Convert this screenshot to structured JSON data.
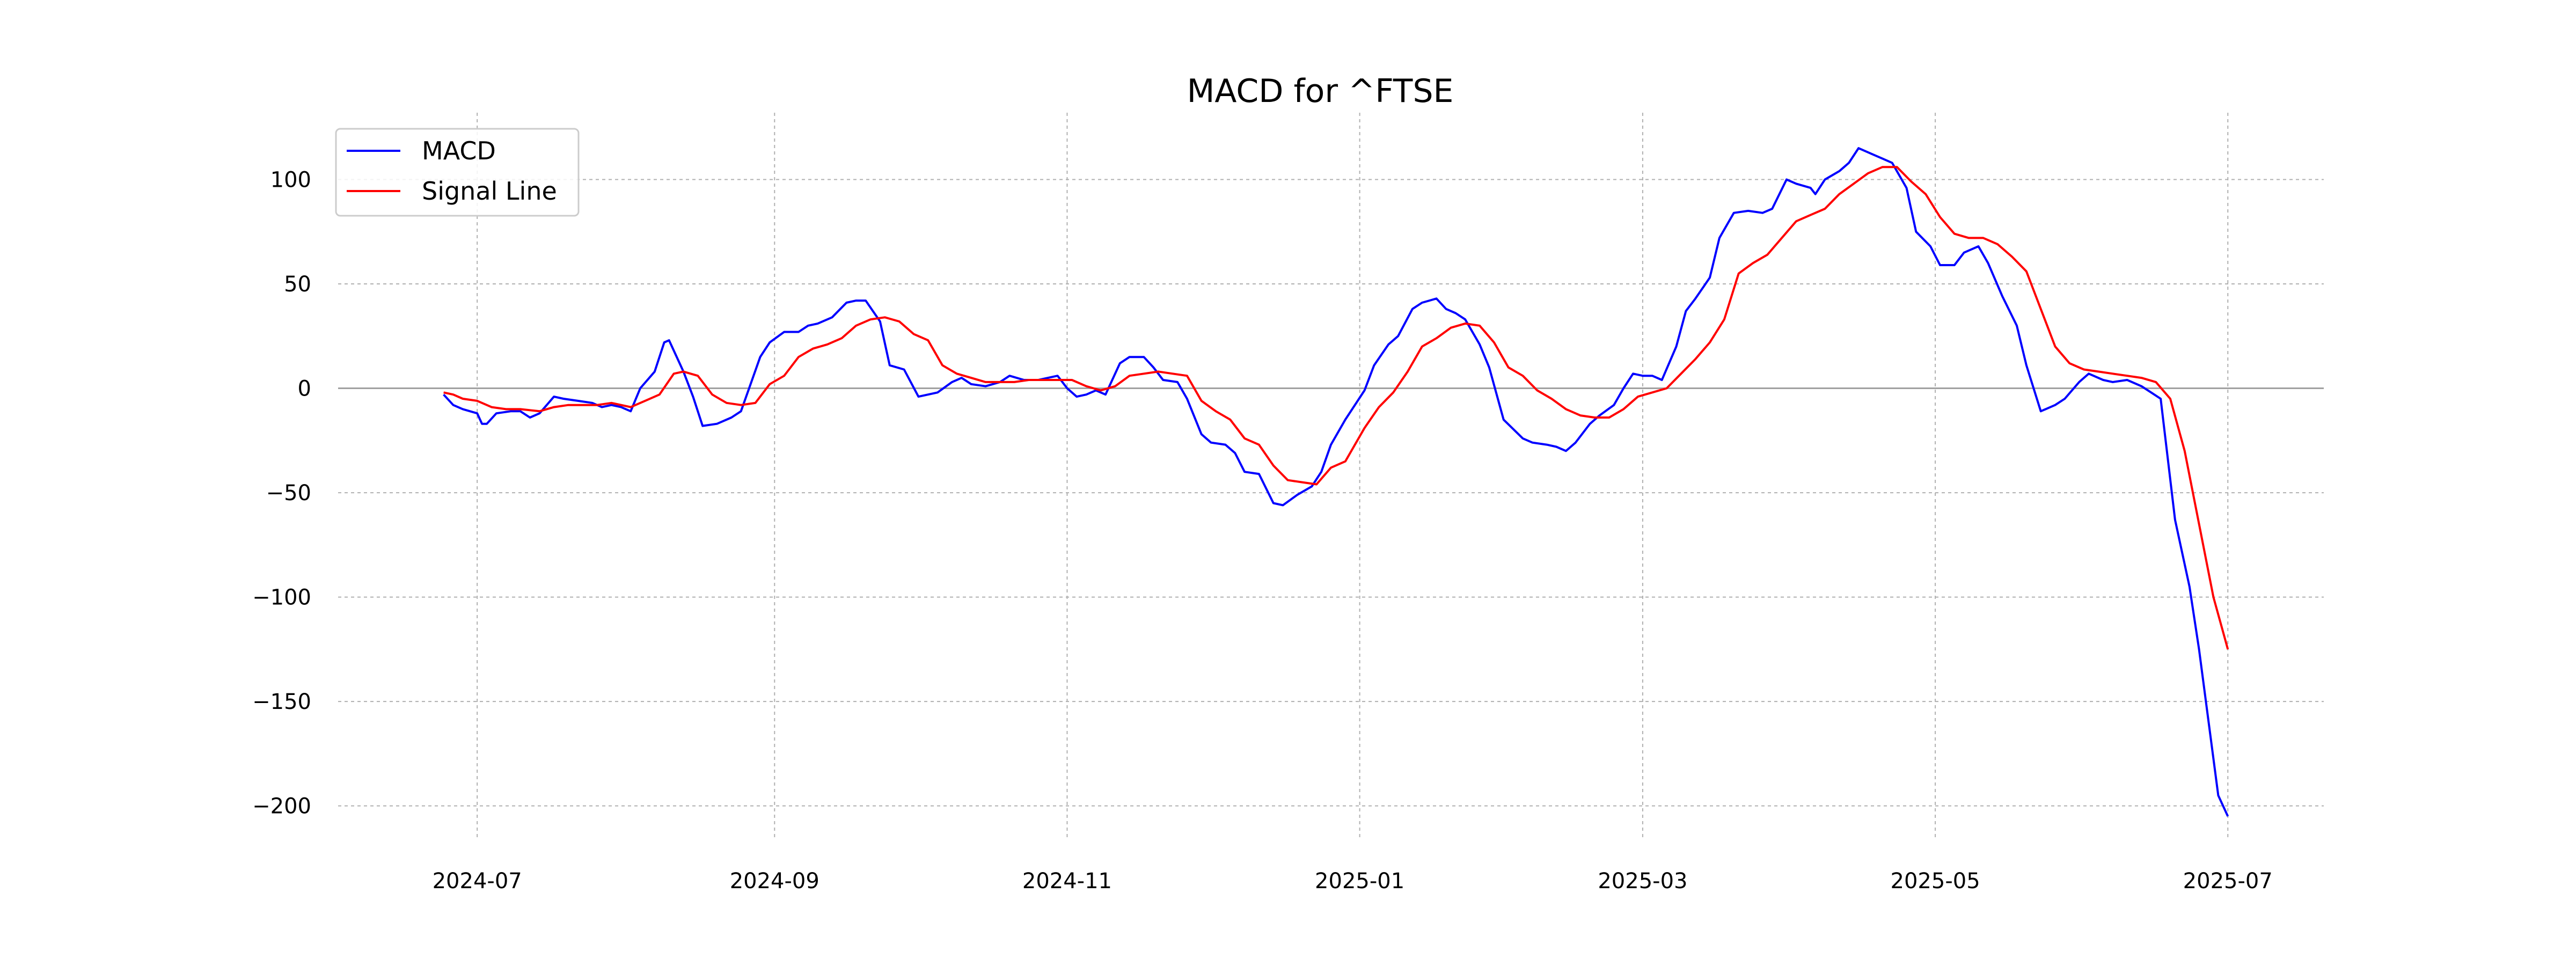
{
  "chart_data": {
    "type": "line",
    "title": "MACD for ^FTSE",
    "xlabel": "",
    "ylabel": "",
    "ylim": [
      -215,
      132
    ],
    "xlim": [
      "2024-06-02",
      "2025-07-21"
    ],
    "grid": true,
    "zero_line": true,
    "legend_position": "top-left",
    "x_ticks": [
      "2024-07-01",
      "2024-09-01",
      "2024-11-01",
      "2025-01-01",
      "2025-03-01",
      "2025-05-01",
      "2025-07-01"
    ],
    "x_tick_labels": [
      "2024-07",
      "2024-09",
      "2024-11",
      "2025-01",
      "2025-03",
      "2025-05",
      "2025-07"
    ],
    "y_ticks": [
      100,
      50,
      0,
      -50,
      -100,
      -150,
      -200
    ],
    "y_tick_labels": [
      "100",
      "50",
      "0",
      "−50",
      "−100",
      "−150",
      "−200"
    ],
    "series": [
      {
        "name": "MACD",
        "color": "#0000ff",
        "points": [
          [
            "2024-06-24",
            -3
          ],
          [
            "2024-06-26",
            -8
          ],
          [
            "2024-06-28",
            -10
          ],
          [
            "2024-07-01",
            -12
          ],
          [
            "2024-07-02",
            -17
          ],
          [
            "2024-07-03",
            -17
          ],
          [
            "2024-07-05",
            -12
          ],
          [
            "2024-07-08",
            -11
          ],
          [
            "2024-07-10",
            -11
          ],
          [
            "2024-07-12",
            -14
          ],
          [
            "2024-07-14",
            -12
          ],
          [
            "2024-07-17",
            -4
          ],
          [
            "2024-07-19",
            -5
          ],
          [
            "2024-07-22",
            -6
          ],
          [
            "2024-07-25",
            -7
          ],
          [
            "2024-07-27",
            -9
          ],
          [
            "2024-07-29",
            -8
          ],
          [
            "2024-07-31",
            -9
          ],
          [
            "2024-08-02",
            -11
          ],
          [
            "2024-08-04",
            0
          ],
          [
            "2024-08-07",
            8
          ],
          [
            "2024-08-09",
            22
          ],
          [
            "2024-08-10",
            23
          ],
          [
            "2024-08-13",
            8
          ],
          [
            "2024-08-15",
            -4
          ],
          [
            "2024-08-17",
            -18
          ],
          [
            "2024-08-20",
            -17
          ],
          [
            "2024-08-23",
            -14
          ],
          [
            "2024-08-25",
            -11
          ],
          [
            "2024-08-27",
            2
          ],
          [
            "2024-08-29",
            15
          ],
          [
            "2024-08-31",
            22
          ],
          [
            "2024-09-03",
            27
          ],
          [
            "2024-09-06",
            27
          ],
          [
            "2024-09-08",
            30
          ],
          [
            "2024-09-10",
            31
          ],
          [
            "2024-09-13",
            34
          ],
          [
            "2024-09-16",
            41
          ],
          [
            "2024-09-18",
            42
          ],
          [
            "2024-09-20",
            42
          ],
          [
            "2024-09-23",
            32
          ],
          [
            "2024-09-25",
            11
          ],
          [
            "2024-09-28",
            9
          ],
          [
            "2024-10-01",
            -4
          ],
          [
            "2024-10-03",
            -3
          ],
          [
            "2024-10-05",
            -2
          ],
          [
            "2024-10-08",
            3
          ],
          [
            "2024-10-10",
            5
          ],
          [
            "2024-10-12",
            2
          ],
          [
            "2024-10-15",
            1
          ],
          [
            "2024-10-18",
            3
          ],
          [
            "2024-10-20",
            6
          ],
          [
            "2024-10-23",
            4
          ],
          [
            "2024-10-26",
            4
          ],
          [
            "2024-10-28",
            5
          ],
          [
            "2024-10-30",
            6
          ],
          [
            "2024-11-01",
            0
          ],
          [
            "2024-11-03",
            -4
          ],
          [
            "2024-11-05",
            -3
          ],
          [
            "2024-11-07",
            -1
          ],
          [
            "2024-11-09",
            -3
          ],
          [
            "2024-11-12",
            12
          ],
          [
            "2024-11-14",
            15
          ],
          [
            "2024-11-17",
            15
          ],
          [
            "2024-11-19",
            10
          ],
          [
            "2024-11-21",
            4
          ],
          [
            "2024-11-24",
            3
          ],
          [
            "2024-11-26",
            -5
          ],
          [
            "2024-11-29",
            -22
          ],
          [
            "2024-12-01",
            -26
          ],
          [
            "2024-12-04",
            -27
          ],
          [
            "2024-12-06",
            -31
          ],
          [
            "2024-12-08",
            -40
          ],
          [
            "2024-12-11",
            -41
          ],
          [
            "2024-12-14",
            -55
          ],
          [
            "2024-12-16",
            -56
          ],
          [
            "2024-12-19",
            -51
          ],
          [
            "2024-12-22",
            -47
          ],
          [
            "2024-12-24",
            -40
          ],
          [
            "2024-12-26",
            -27
          ],
          [
            "2024-12-29",
            -15
          ],
          [
            "2025-01-02",
            -1
          ],
          [
            "2025-01-04",
            11
          ],
          [
            "2025-01-07",
            21
          ],
          [
            "2025-01-09",
            25
          ],
          [
            "2025-01-12",
            38
          ],
          [
            "2025-01-14",
            41
          ],
          [
            "2025-01-17",
            43
          ],
          [
            "2025-01-19",
            38
          ],
          [
            "2025-01-21",
            36
          ],
          [
            "2025-01-23",
            33
          ],
          [
            "2025-01-26",
            21
          ],
          [
            "2025-01-28",
            10
          ],
          [
            "2025-01-31",
            -15
          ],
          [
            "2025-02-04",
            -24
          ],
          [
            "2025-02-06",
            -26
          ],
          [
            "2025-02-09",
            -27
          ],
          [
            "2025-02-11",
            -28
          ],
          [
            "2025-02-13",
            -30
          ],
          [
            "2025-02-15",
            -26
          ],
          [
            "2025-02-18",
            -17
          ],
          [
            "2025-02-20",
            -13
          ],
          [
            "2025-02-23",
            -8
          ],
          [
            "2025-02-25",
            0
          ],
          [
            "2025-02-27",
            7
          ],
          [
            "2025-03-01",
            6
          ],
          [
            "2025-03-03",
            6
          ],
          [
            "2025-03-05",
            4
          ],
          [
            "2025-03-08",
            20
          ],
          [
            "2025-03-10",
            37
          ],
          [
            "2025-03-12",
            43
          ],
          [
            "2025-03-15",
            53
          ],
          [
            "2025-03-17",
            72
          ],
          [
            "2025-03-20",
            84
          ],
          [
            "2025-03-23",
            85
          ],
          [
            "2025-03-26",
            84
          ],
          [
            "2025-03-28",
            86
          ],
          [
            "2025-03-31",
            100
          ],
          [
            "2025-04-02",
            98
          ],
          [
            "2025-04-05",
            96
          ],
          [
            "2025-04-06",
            93
          ],
          [
            "2025-04-08",
            100
          ],
          [
            "2025-04-11",
            104
          ],
          [
            "2025-04-13",
            108
          ],
          [
            "2025-04-15",
            115
          ],
          [
            "2025-04-18",
            112
          ],
          [
            "2025-04-20",
            110
          ],
          [
            "2025-04-22",
            108
          ],
          [
            "2025-04-25",
            96
          ],
          [
            "2025-04-27",
            75
          ],
          [
            "2025-04-30",
            68
          ],
          [
            "2025-05-02",
            59
          ],
          [
            "2025-05-05",
            59
          ],
          [
            "2025-05-07",
            65
          ],
          [
            "2025-05-10",
            68
          ],
          [
            "2025-05-12",
            60
          ],
          [
            "2025-05-15",
            44
          ],
          [
            "2025-05-18",
            30
          ],
          [
            "2025-05-20",
            11
          ],
          [
            "2025-05-23",
            -11
          ],
          [
            "2025-05-26",
            -8
          ],
          [
            "2025-05-28",
            -5
          ],
          [
            "2025-05-31",
            3
          ],
          [
            "2025-06-02",
            7
          ],
          [
            "2025-06-05",
            4
          ],
          [
            "2025-06-07",
            3
          ],
          [
            "2025-06-10",
            4
          ],
          [
            "2025-06-13",
            1
          ],
          [
            "2025-06-15",
            -2
          ],
          [
            "2025-06-17",
            -5
          ],
          [
            "2025-06-20",
            -63
          ],
          [
            "2025-06-23",
            -95
          ],
          [
            "2025-06-25",
            -125
          ],
          [
            "2025-06-27",
            -160
          ],
          [
            "2025-06-29",
            -195
          ],
          [
            "2025-07-01",
            -205
          ]
        ]
      },
      {
        "name": "Signal Line",
        "color": "#ff0000",
        "points": [
          [
            "2024-06-24",
            -2
          ],
          [
            "2024-06-26",
            -3
          ],
          [
            "2024-06-28",
            -5
          ],
          [
            "2024-07-01",
            -6
          ],
          [
            "2024-07-04",
            -9
          ],
          [
            "2024-07-07",
            -10
          ],
          [
            "2024-07-10",
            -10
          ],
          [
            "2024-07-14",
            -11
          ],
          [
            "2024-07-17",
            -9
          ],
          [
            "2024-07-20",
            -8
          ],
          [
            "2024-07-23",
            -8
          ],
          [
            "2024-07-26",
            -8
          ],
          [
            "2024-07-29",
            -7
          ],
          [
            "2024-08-02",
            -9
          ],
          [
            "2024-08-05",
            -6
          ],
          [
            "2024-08-08",
            -3
          ],
          [
            "2024-08-11",
            7
          ],
          [
            "2024-08-13",
            8
          ],
          [
            "2024-08-16",
            6
          ],
          [
            "2024-08-19",
            -3
          ],
          [
            "2024-08-22",
            -7
          ],
          [
            "2024-08-25",
            -8
          ],
          [
            "2024-08-28",
            -7
          ],
          [
            "2024-08-31",
            2
          ],
          [
            "2024-09-03",
            6
          ],
          [
            "2024-09-06",
            15
          ],
          [
            "2024-09-09",
            19
          ],
          [
            "2024-09-12",
            21
          ],
          [
            "2024-09-15",
            24
          ],
          [
            "2024-09-18",
            30
          ],
          [
            "2024-09-21",
            33
          ],
          [
            "2024-09-24",
            34
          ],
          [
            "2024-09-27",
            32
          ],
          [
            "2024-09-30",
            26
          ],
          [
            "2024-10-03",
            23
          ],
          [
            "2024-10-06",
            11
          ],
          [
            "2024-10-09",
            7
          ],
          [
            "2024-10-12",
            5
          ],
          [
            "2024-10-15",
            3
          ],
          [
            "2024-10-18",
            3
          ],
          [
            "2024-10-21",
            3
          ],
          [
            "2024-10-24",
            4
          ],
          [
            "2024-10-27",
            4
          ],
          [
            "2024-10-30",
            4
          ],
          [
            "2024-11-02",
            4
          ],
          [
            "2024-11-05",
            1
          ],
          [
            "2024-11-08",
            -1
          ],
          [
            "2024-11-11",
            1
          ],
          [
            "2024-11-14",
            6
          ],
          [
            "2024-11-17",
            7
          ],
          [
            "2024-11-20",
            8
          ],
          [
            "2024-11-23",
            7
          ],
          [
            "2024-11-26",
            6
          ],
          [
            "2024-11-29",
            -6
          ],
          [
            "2024-12-02",
            -11
          ],
          [
            "2024-12-05",
            -15
          ],
          [
            "2024-12-08",
            -24
          ],
          [
            "2024-12-11",
            -27
          ],
          [
            "2024-12-14",
            -37
          ],
          [
            "2024-12-17",
            -44
          ],
          [
            "2024-12-20",
            -45
          ],
          [
            "2024-12-23",
            -46
          ],
          [
            "2024-12-26",
            -38
          ],
          [
            "2024-12-29",
            -35
          ],
          [
            "2025-01-02",
            -19
          ],
          [
            "2025-01-05",
            -9
          ],
          [
            "2025-01-08",
            -2
          ],
          [
            "2025-01-11",
            8
          ],
          [
            "2025-01-14",
            20
          ],
          [
            "2025-01-17",
            24
          ],
          [
            "2025-01-20",
            29
          ],
          [
            "2025-01-23",
            31
          ],
          [
            "2025-01-26",
            30
          ],
          [
            "2025-01-29",
            22
          ],
          [
            "2025-02-01",
            10
          ],
          [
            "2025-02-04",
            6
          ],
          [
            "2025-02-07",
            -1
          ],
          [
            "2025-02-10",
            -5
          ],
          [
            "2025-02-13",
            -10
          ],
          [
            "2025-02-16",
            -13
          ],
          [
            "2025-02-19",
            -14
          ],
          [
            "2025-02-22",
            -14
          ],
          [
            "2025-02-25",
            -10
          ],
          [
            "2025-02-28",
            -4
          ],
          [
            "2025-03-03",
            -2
          ],
          [
            "2025-03-06",
            0
          ],
          [
            "2025-03-09",
            7
          ],
          [
            "2025-03-12",
            14
          ],
          [
            "2025-03-15",
            22
          ],
          [
            "2025-03-18",
            33
          ],
          [
            "2025-03-21",
            55
          ],
          [
            "2025-03-24",
            60
          ],
          [
            "2025-03-27",
            64
          ],
          [
            "2025-03-30",
            72
          ],
          [
            "2025-04-02",
            80
          ],
          [
            "2025-04-05",
            83
          ],
          [
            "2025-04-08",
            86
          ],
          [
            "2025-04-11",
            93
          ],
          [
            "2025-04-14",
            98
          ],
          [
            "2025-04-17",
            103
          ],
          [
            "2025-04-20",
            106
          ],
          [
            "2025-04-23",
            106
          ],
          [
            "2025-04-26",
            99
          ],
          [
            "2025-04-29",
            93
          ],
          [
            "2025-05-02",
            82
          ],
          [
            "2025-05-05",
            74
          ],
          [
            "2025-05-08",
            72
          ],
          [
            "2025-05-11",
            72
          ],
          [
            "2025-05-14",
            69
          ],
          [
            "2025-05-17",
            63
          ],
          [
            "2025-05-20",
            56
          ],
          [
            "2025-05-23",
            38
          ],
          [
            "2025-05-26",
            20
          ],
          [
            "2025-05-29",
            12
          ],
          [
            "2025-06-01",
            9
          ],
          [
            "2025-06-04",
            8
          ],
          [
            "2025-06-07",
            7
          ],
          [
            "2025-06-10",
            6
          ],
          [
            "2025-06-13",
            5
          ],
          [
            "2025-06-16",
            3
          ],
          [
            "2025-06-19",
            -5
          ],
          [
            "2025-06-22",
            -30
          ],
          [
            "2025-06-25",
            -65
          ],
          [
            "2025-06-28",
            -100
          ],
          [
            "2025-07-01",
            -125
          ]
        ]
      }
    ]
  }
}
